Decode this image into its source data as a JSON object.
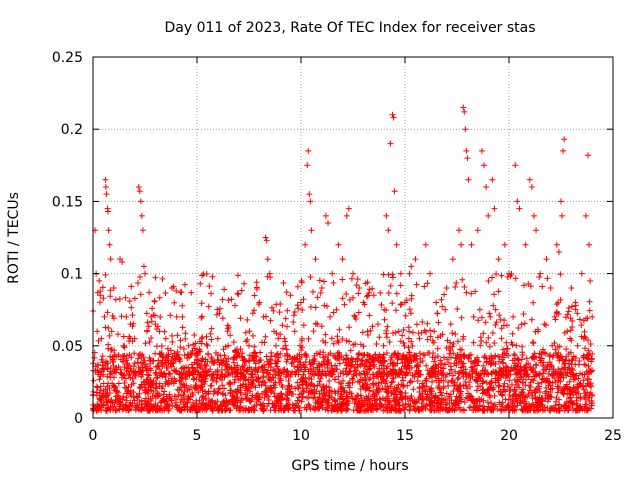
{
  "chart_data": {
    "type": "scatter",
    "title": "Day 011 of 2023, Rate Of TEC Index for receiver stas",
    "xlabel": "GPS time / hours",
    "ylabel": "ROTI / TECUs",
    "xlim": [
      0,
      25
    ],
    "ylim": [
      0,
      0.25
    ],
    "x_ticks": [
      "0",
      "5",
      "10",
      "15",
      "20",
      "25"
    ],
    "y_ticks": [
      "0",
      "0.05",
      "0.1",
      "0.15",
      "0.2",
      "0.25"
    ],
    "grid": true,
    "marker": "plus",
    "color": "#ff0000",
    "points": [
      [
        0.1,
        0.13
      ],
      [
        0.15,
        0.1
      ],
      [
        0.3,
        0.095
      ],
      [
        0.35,
        0.085
      ],
      [
        0.5,
        0.083
      ],
      [
        0.55,
        0.07
      ],
      [
        0.6,
        0.165
      ],
      [
        0.62,
        0.16
      ],
      [
        0.65,
        0.155
      ],
      [
        0.7,
        0.145
      ],
      [
        0.72,
        0.143
      ],
      [
        0.75,
        0.13
      ],
      [
        0.8,
        0.12
      ],
      [
        0.85,
        0.11
      ],
      [
        1.0,
        0.09
      ],
      [
        1.1,
        0.082
      ],
      [
        1.3,
        0.11
      ],
      [
        1.4,
        0.108
      ],
      [
        1.6,
        0.07
      ],
      [
        1.8,
        0.065
      ],
      [
        2.2,
        0.16
      ],
      [
        2.25,
        0.157
      ],
      [
        2.3,
        0.15
      ],
      [
        2.35,
        0.14
      ],
      [
        2.4,
        0.13
      ],
      [
        2.45,
        0.105
      ],
      [
        2.5,
        0.1
      ],
      [
        2.8,
        0.07
      ],
      [
        3.0,
        0.065
      ],
      [
        3.2,
        0.06
      ],
      [
        3.5,
        0.055
      ],
      [
        3.8,
        0.09
      ],
      [
        4.0,
        0.088
      ],
      [
        4.2,
        0.087
      ],
      [
        4.3,
        0.07
      ],
      [
        4.6,
        0.05
      ],
      [
        5.0,
        0.045
      ],
      [
        5.5,
        0.05
      ],
      [
        6.0,
        0.055
      ],
      [
        6.5,
        0.05
      ],
      [
        7.0,
        0.045
      ],
      [
        7.5,
        0.05
      ],
      [
        8.0,
        0.08
      ],
      [
        8.2,
        0.07
      ],
      [
        8.3,
        0.125
      ],
      [
        8.35,
        0.123
      ],
      [
        8.4,
        0.11
      ],
      [
        8.5,
        0.1
      ],
      [
        8.7,
        0.06
      ],
      [
        9.0,
        0.058
      ],
      [
        9.5,
        0.085
      ],
      [
        10.0,
        0.08
      ],
      [
        10.2,
        0.12
      ],
      [
        10.3,
        0.175
      ],
      [
        10.35,
        0.185
      ],
      [
        10.4,
        0.155
      ],
      [
        10.45,
        0.15
      ],
      [
        10.5,
        0.13
      ],
      [
        10.7,
        0.11
      ],
      [
        11.0,
        0.09
      ],
      [
        11.2,
        0.14
      ],
      [
        11.3,
        0.135
      ],
      [
        11.5,
        0.1
      ],
      [
        11.8,
        0.12
      ],
      [
        12.0,
        0.11
      ],
      [
        12.2,
        0.14
      ],
      [
        12.3,
        0.145
      ],
      [
        12.5,
        0.1
      ],
      [
        12.8,
        0.09
      ],
      [
        13.0,
        0.08
      ],
      [
        13.5,
        0.085
      ],
      [
        14.0,
        0.075
      ],
      [
        14.1,
        0.14
      ],
      [
        14.2,
        0.13
      ],
      [
        14.3,
        0.19
      ],
      [
        14.4,
        0.21
      ],
      [
        14.45,
        0.208
      ],
      [
        14.5,
        0.157
      ],
      [
        14.6,
        0.12
      ],
      [
        14.8,
        0.1
      ],
      [
        15.0,
        0.08
      ],
      [
        15.3,
        0.105
      ],
      [
        15.5,
        0.11
      ],
      [
        16.0,
        0.12
      ],
      [
        16.2,
        0.1
      ],
      [
        16.5,
        0.08
      ],
      [
        17.0,
        0.09
      ],
      [
        17.3,
        0.11
      ],
      [
        17.6,
        0.13
      ],
      [
        17.7,
        0.12
      ],
      [
        17.8,
        0.215
      ],
      [
        17.85,
        0.212
      ],
      [
        17.9,
        0.2
      ],
      [
        17.95,
        0.185
      ],
      [
        18.0,
        0.18
      ],
      [
        18.05,
        0.165
      ],
      [
        18.2,
        0.12
      ],
      [
        18.5,
        0.13
      ],
      [
        18.7,
        0.185
      ],
      [
        18.8,
        0.175
      ],
      [
        18.9,
        0.16
      ],
      [
        19.0,
        0.14
      ],
      [
        19.2,
        0.165
      ],
      [
        19.3,
        0.145
      ],
      [
        19.5,
        0.11
      ],
      [
        19.8,
        0.12
      ],
      [
        20.0,
        0.1
      ],
      [
        20.3,
        0.175
      ],
      [
        20.4,
        0.15
      ],
      [
        20.5,
        0.145
      ],
      [
        20.8,
        0.12
      ],
      [
        21.0,
        0.165
      ],
      [
        21.1,
        0.16
      ],
      [
        21.2,
        0.14
      ],
      [
        21.3,
        0.13
      ],
      [
        21.5,
        0.1
      ],
      [
        21.8,
        0.11
      ],
      [
        22.0,
        0.09
      ],
      [
        22.3,
        0.12
      ],
      [
        22.4,
        0.115
      ],
      [
        22.5,
        0.15
      ],
      [
        22.55,
        0.14
      ],
      [
        22.6,
        0.185
      ],
      [
        22.65,
        0.193
      ],
      [
        23.0,
        0.09
      ],
      [
        23.2,
        0.08
      ],
      [
        23.5,
        0.1
      ],
      [
        23.7,
        0.14
      ],
      [
        23.8,
        0.182
      ],
      [
        23.85,
        0.12
      ],
      [
        23.9,
        0.095
      ],
      [
        24.0,
        0.07
      ],
      [
        0.2,
        0.06
      ],
      [
        0.4,
        0.055
      ],
      [
        0.9,
        0.06
      ],
      [
        1.2,
        0.058
      ],
      [
        1.5,
        0.05
      ],
      [
        2.0,
        0.055
      ],
      [
        2.6,
        0.06
      ],
      [
        3.3,
        0.045
      ],
      [
        3.6,
        0.048
      ],
      [
        4.1,
        0.042
      ],
      [
        4.8,
        0.035
      ],
      [
        5.2,
        0.04
      ],
      [
        5.8,
        0.038
      ],
      [
        6.2,
        0.04
      ],
      [
        6.8,
        0.042
      ],
      [
        7.2,
        0.04
      ],
      [
        7.8,
        0.045
      ],
      [
        8.8,
        0.05
      ],
      [
        9.2,
        0.055
      ],
      [
        9.7,
        0.06
      ],
      [
        10.8,
        0.065
      ],
      [
        11.4,
        0.07
      ],
      [
        11.7,
        0.075
      ],
      [
        12.6,
        0.07
      ],
      [
        13.2,
        0.06
      ],
      [
        13.7,
        0.065
      ],
      [
        14.7,
        0.06
      ],
      [
        15.2,
        0.06
      ],
      [
        15.7,
        0.055
      ],
      [
        16.4,
        0.06
      ],
      [
        16.8,
        0.058
      ],
      [
        17.2,
        0.065
      ],
      [
        18.3,
        0.07
      ],
      [
        18.6,
        0.075
      ],
      [
        19.1,
        0.07
      ],
      [
        19.6,
        0.068
      ],
      [
        20.2,
        0.07
      ],
      [
        20.7,
        0.072
      ],
      [
        21.4,
        0.06
      ],
      [
        21.7,
        0.065
      ],
      [
        22.2,
        0.07
      ],
      [
        22.8,
        0.06
      ],
      [
        23.3,
        0.05
      ],
      [
        23.6,
        0.055
      ]
    ],
    "dense_band": {
      "x": [
        0,
        24
      ],
      "y": [
        0.005,
        0.045
      ]
    }
  }
}
